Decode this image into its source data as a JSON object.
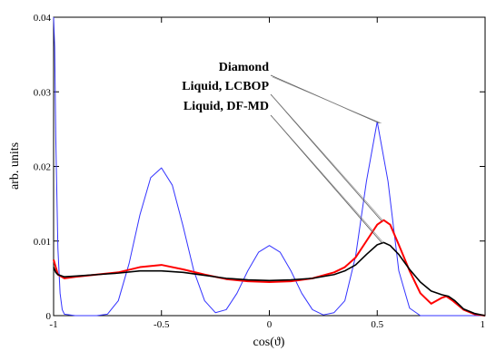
{
  "chart_data": {
    "type": "line",
    "title": "",
    "xlabel": "cos(ϑ)",
    "ylabel": "arb. units",
    "xlim": [
      -1,
      1
    ],
    "ylim": [
      0,
      0.04
    ],
    "xticks": [
      -1,
      -0.5,
      0,
      0.5,
      1
    ],
    "xtick_labels": [
      "-1",
      "-0.5",
      "0",
      "0.5",
      "1"
    ],
    "yticks": [
      0,
      0.01,
      0.02,
      0.03,
      0.04
    ],
    "ytick_labels": [
      "0",
      "0.01",
      "0.02",
      "0.03",
      "0.04"
    ],
    "grid": false,
    "legend_placement": "upper-right (labels with leader lines)",
    "series": [
      {
        "name": "Diamond",
        "color": "#3333ff",
        "x": [
          -1.0,
          -0.995,
          -0.99,
          -0.98,
          -0.97,
          -0.96,
          -0.95,
          -0.9,
          -0.85,
          -0.8,
          -0.75,
          -0.7,
          -0.65,
          -0.6,
          -0.55,
          -0.5,
          -0.45,
          -0.4,
          -0.35,
          -0.3,
          -0.25,
          -0.2,
          -0.15,
          -0.1,
          -0.05,
          0.0,
          0.05,
          0.1,
          0.15,
          0.2,
          0.25,
          0.3,
          0.35,
          0.4,
          0.45,
          0.5,
          0.55,
          0.6,
          0.65,
          0.7,
          0.75,
          0.8,
          0.85,
          0.9,
          0.95,
          1.0
        ],
        "y": [
          0.04,
          0.036,
          0.024,
          0.009,
          0.003,
          0.0008,
          0.0002,
          0.0,
          0.0,
          0.0,
          0.0002,
          0.002,
          0.007,
          0.0135,
          0.0185,
          0.0198,
          0.0175,
          0.012,
          0.006,
          0.002,
          0.0004,
          0.0008,
          0.003,
          0.006,
          0.0085,
          0.0094,
          0.0085,
          0.006,
          0.003,
          0.0008,
          0.0001,
          0.0004,
          0.002,
          0.008,
          0.018,
          0.026,
          0.018,
          0.006,
          0.001,
          0.0,
          0.0,
          0.0,
          0.0,
          0.0,
          0.0,
          0.0
        ]
      },
      {
        "name": "Liquid, LCBOP",
        "color": "#ff0000",
        "x": [
          -1.0,
          -0.99,
          -0.98,
          -0.95,
          -0.9,
          -0.8,
          -0.7,
          -0.6,
          -0.5,
          -0.4,
          -0.3,
          -0.2,
          -0.1,
          0.0,
          0.1,
          0.2,
          0.3,
          0.35,
          0.4,
          0.45,
          0.5,
          0.53,
          0.56,
          0.6,
          0.65,
          0.7,
          0.75,
          0.8,
          0.82,
          0.85,
          0.9,
          0.95,
          1.0
        ],
        "y": [
          0.0075,
          0.0065,
          0.0055,
          0.005,
          0.0052,
          0.0055,
          0.0058,
          0.0065,
          0.0068,
          0.0062,
          0.0055,
          0.0049,
          0.0046,
          0.0045,
          0.0046,
          0.005,
          0.0058,
          0.0065,
          0.0078,
          0.01,
          0.0122,
          0.0128,
          0.0122,
          0.0095,
          0.006,
          0.003,
          0.0016,
          0.0024,
          0.0026,
          0.002,
          0.0008,
          0.0002,
          0.0
        ]
      },
      {
        "name": "Liquid, DF-MD",
        "color": "#000000",
        "x": [
          -1.0,
          -0.99,
          -0.98,
          -0.95,
          -0.9,
          -0.8,
          -0.7,
          -0.6,
          -0.5,
          -0.4,
          -0.3,
          -0.2,
          -0.1,
          0.0,
          0.1,
          0.2,
          0.3,
          0.35,
          0.4,
          0.45,
          0.5,
          0.53,
          0.56,
          0.6,
          0.65,
          0.7,
          0.75,
          0.8,
          0.83,
          0.86,
          0.9,
          0.95,
          1.0
        ],
        "y": [
          0.0065,
          0.0058,
          0.0055,
          0.0052,
          0.0053,
          0.0055,
          0.0057,
          0.006,
          0.006,
          0.0058,
          0.0054,
          0.005,
          0.0048,
          0.0047,
          0.0048,
          0.005,
          0.0055,
          0.006,
          0.0068,
          0.0082,
          0.0095,
          0.0098,
          0.0094,
          0.0082,
          0.0062,
          0.0045,
          0.0033,
          0.0028,
          0.0026,
          0.002,
          0.0009,
          0.0003,
          0.0
        ]
      }
    ],
    "annotations": [
      {
        "text": "Diamond",
        "target_x": 0.51,
        "target_y": 0.0258
      },
      {
        "text": "Liquid, LCBOP",
        "target_x": 0.52,
        "target_y": 0.0127
      },
      {
        "text": "Liquid, DF-MD",
        "target_x": 0.52,
        "target_y": 0.0098
      }
    ]
  }
}
